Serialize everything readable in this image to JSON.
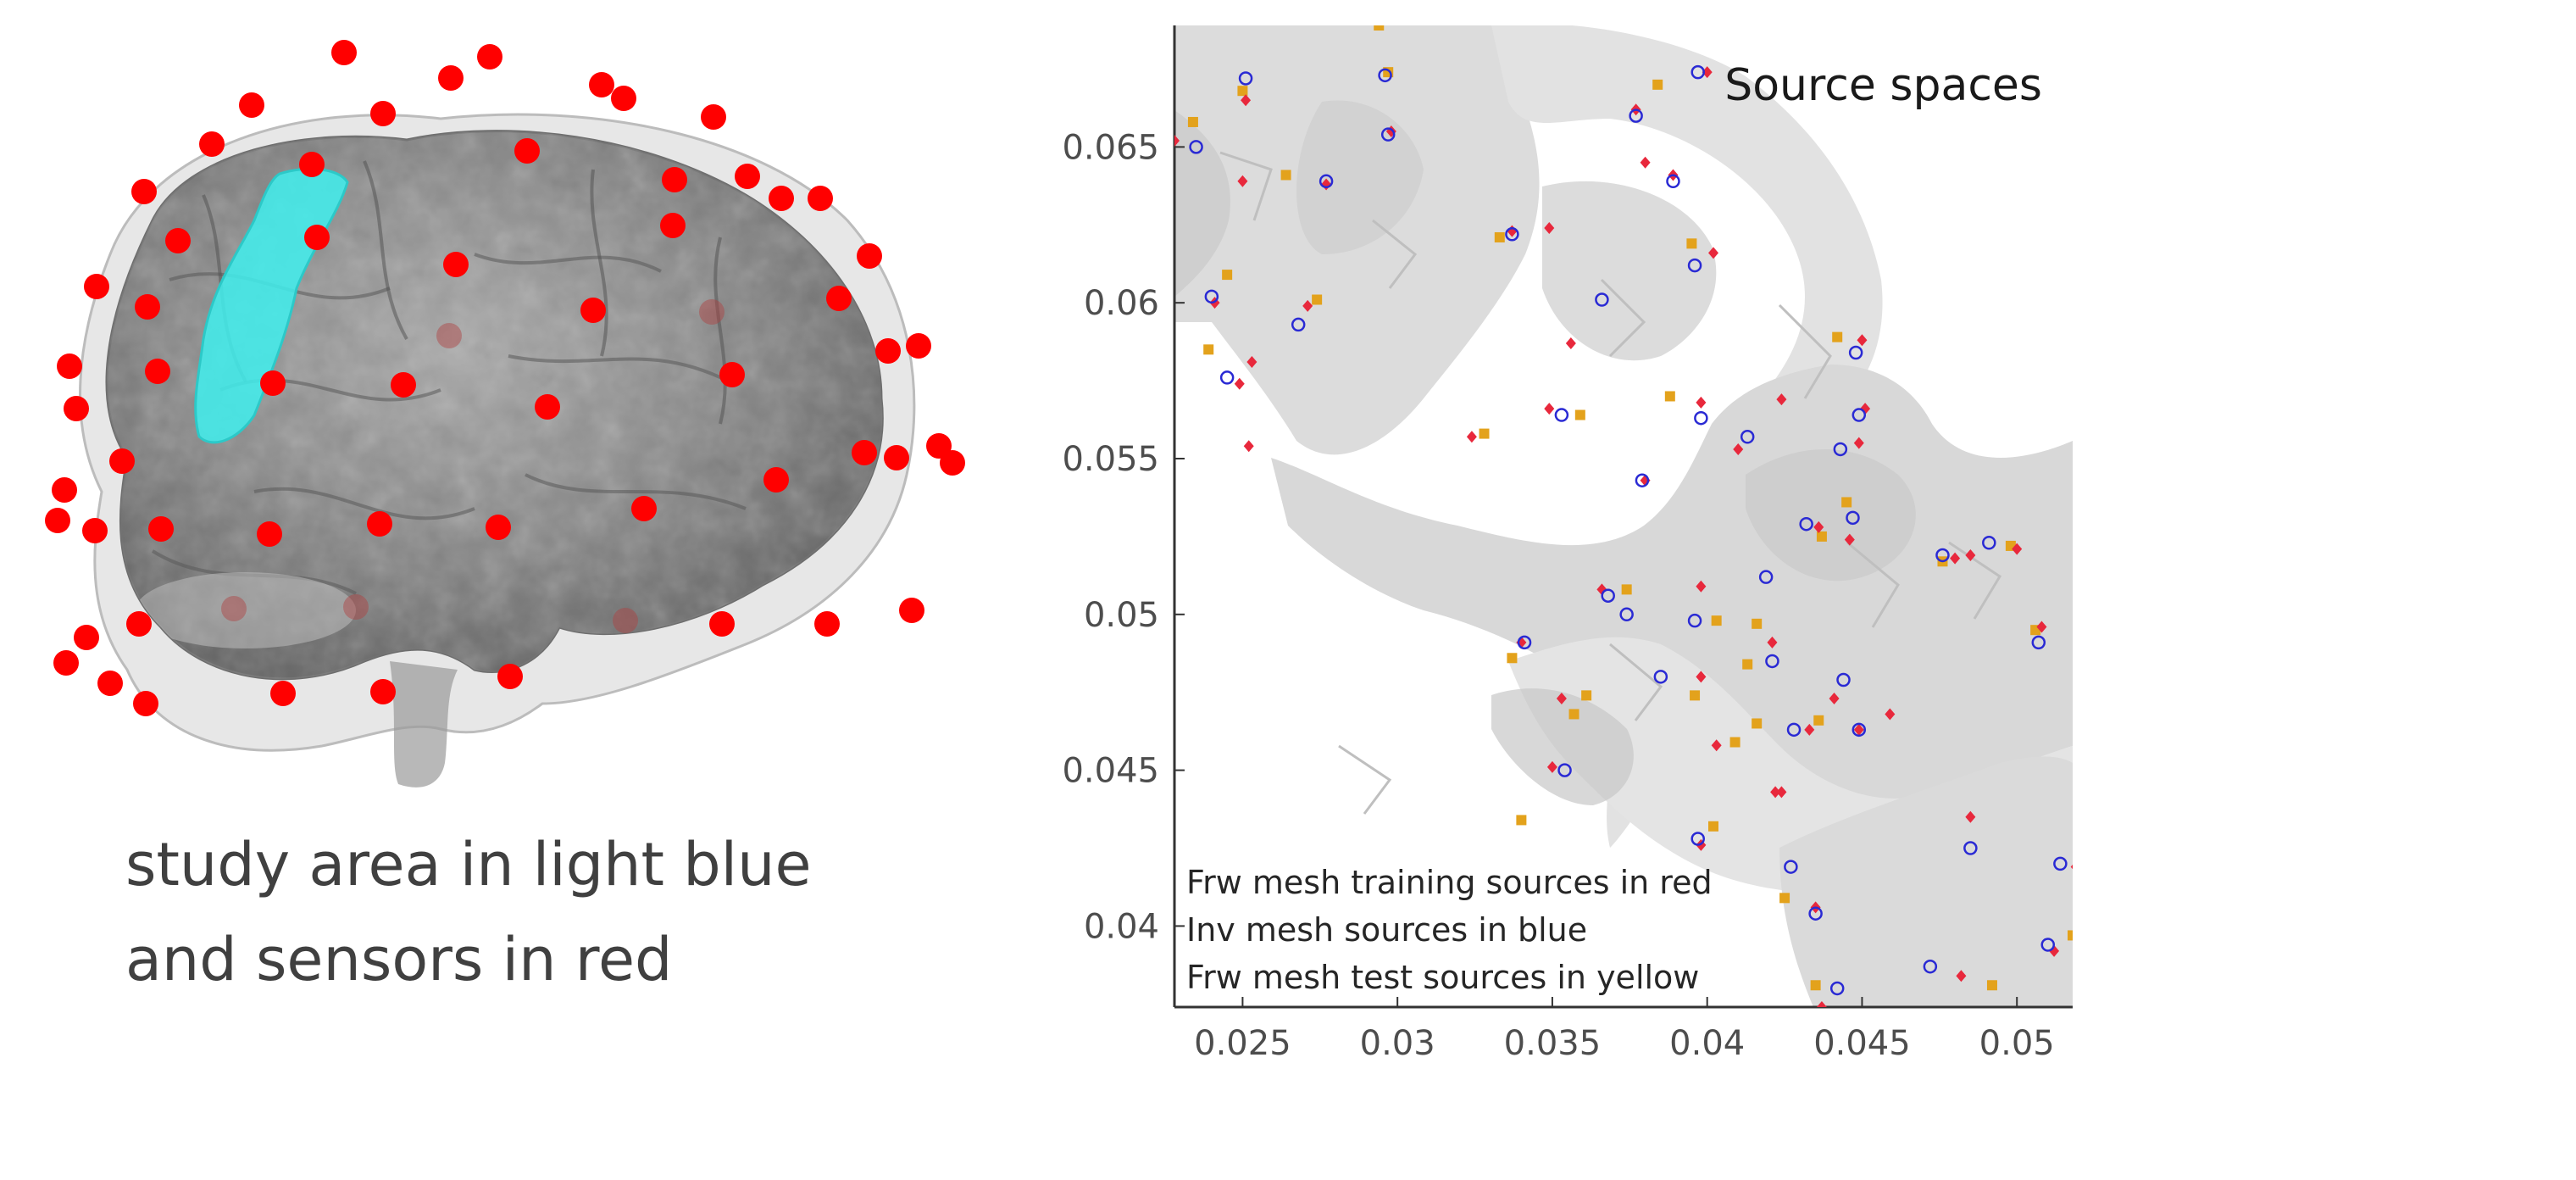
{
  "brain_figure": {
    "caption_lines": [
      "study area in light blue",
      "and sensors in red"
    ],
    "colors": {
      "study_area": "#3ff0ee",
      "sensors": "#ff0000",
      "brain": "#8a8a8a",
      "head": "#cfcfcf"
    }
  },
  "chart_data": {
    "type": "scatter",
    "title": "Source spaces",
    "xlabel": "",
    "ylabel": "",
    "xlim": [
      0.0228,
      0.0518
    ],
    "ylim": [
      0.0374,
      0.0689
    ],
    "xticks": [
      0.025,
      0.03,
      0.035,
      0.04,
      0.045,
      0.05
    ],
    "xtick_labels": [
      "0.025",
      "0.03",
      "0.035",
      "0.04",
      "0.045",
      "0.05"
    ],
    "yticks": [
      0.04,
      0.045,
      0.05,
      0.055,
      0.06,
      0.065
    ],
    "ytick_labels": [
      "0.04",
      "0.045",
      "0.05",
      "0.055",
      "0.06",
      "0.065"
    ],
    "grid": false,
    "legend_position": "bottom-left",
    "legend_lines": [
      "Frw mesh training sources in red",
      "Inv mesh sources in blue",
      "Frw mesh test sources in yellow"
    ],
    "background": "gray cortical surface mesh",
    "series": [
      {
        "marker": "diamond",
        "color": "#e8283c",
        "points": [
          [
            0.0228,
            0.0652
          ],
          [
            0.0251,
            0.0665
          ],
          [
            0.0298,
            0.0655
          ],
          [
            0.025,
            0.0639
          ],
          [
            0.0277,
            0.0638
          ],
          [
            0.0377,
            0.0662
          ],
          [
            0.04,
            0.0674
          ],
          [
            0.038,
            0.0645
          ],
          [
            0.0389,
            0.0641
          ],
          [
            0.0337,
            0.0623
          ],
          [
            0.0349,
            0.0624
          ],
          [
            0.0241,
            0.06
          ],
          [
            0.0253,
            0.0581
          ],
          [
            0.0271,
            0.0599
          ],
          [
            0.0402,
            0.0616
          ],
          [
            0.045,
            0.0588
          ],
          [
            0.0451,
            0.0566
          ],
          [
            0.0424,
            0.0569
          ],
          [
            0.0398,
            0.0568
          ],
          [
            0.0349,
            0.0566
          ],
          [
            0.0324,
            0.0557
          ],
          [
            0.041,
            0.0553
          ],
          [
            0.0449,
            0.0555
          ],
          [
            0.0249,
            0.0574
          ],
          [
            0.0252,
            0.0554
          ],
          [
            0.038,
            0.0543
          ],
          [
            0.0436,
            0.0528
          ],
          [
            0.0446,
            0.0524
          ],
          [
            0.048,
            0.0518
          ],
          [
            0.0485,
            0.0519
          ],
          [
            0.05,
            0.0521
          ],
          [
            0.0366,
            0.0508
          ],
          [
            0.0398,
            0.0509
          ],
          [
            0.0421,
            0.0491
          ],
          [
            0.0398,
            0.048
          ],
          [
            0.0441,
            0.0473
          ],
          [
            0.0459,
            0.0468
          ],
          [
            0.0449,
            0.0463
          ],
          [
            0.0433,
            0.0463
          ],
          [
            0.0403,
            0.0458
          ],
          [
            0.0353,
            0.0473
          ],
          [
            0.034,
            0.0491
          ],
          [
            0.035,
            0.0451
          ],
          [
            0.0485,
            0.0435
          ],
          [
            0.0424,
            0.0443
          ],
          [
            0.0422,
            0.0443
          ],
          [
            0.0398,
            0.0426
          ],
          [
            0.0435,
            0.0406
          ],
          [
            0.0437,
            0.0374
          ],
          [
            0.0482,
            0.0384
          ],
          [
            0.0512,
            0.0392
          ],
          [
            0.0519,
            0.0419
          ],
          [
            0.0508,
            0.0496
          ],
          [
            0.0356,
            0.0587
          ]
        ]
      },
      {
        "marker": "circle",
        "color": "#2a2ad4",
        "points": [
          [
            0.0235,
            0.065
          ],
          [
            0.0251,
            0.0672
          ],
          [
            0.0277,
            0.0639
          ],
          [
            0.0297,
            0.0654
          ],
          [
            0.0296,
            0.0673
          ],
          [
            0.0389,
            0.0639
          ],
          [
            0.0377,
            0.066
          ],
          [
            0.0397,
            0.0674
          ],
          [
            0.0337,
            0.0622
          ],
          [
            0.0396,
            0.0612
          ],
          [
            0.024,
            0.0602
          ],
          [
            0.0268,
            0.0593
          ],
          [
            0.0366,
            0.0601
          ],
          [
            0.0245,
            0.0576
          ],
          [
            0.0353,
            0.0564
          ],
          [
            0.0398,
            0.0563
          ],
          [
            0.0413,
            0.0557
          ],
          [
            0.0448,
            0.0584
          ],
          [
            0.0449,
            0.0564
          ],
          [
            0.0443,
            0.0553
          ],
          [
            0.0379,
            0.0543
          ],
          [
            0.0432,
            0.0529
          ],
          [
            0.0447,
            0.0531
          ],
          [
            0.0476,
            0.0519
          ],
          [
            0.0491,
            0.0523
          ],
          [
            0.0419,
            0.0512
          ],
          [
            0.0368,
            0.0506
          ],
          [
            0.0374,
            0.05
          ],
          [
            0.0396,
            0.0498
          ],
          [
            0.0341,
            0.0491
          ],
          [
            0.0421,
            0.0485
          ],
          [
            0.0385,
            0.048
          ],
          [
            0.0444,
            0.0479
          ],
          [
            0.0449,
            0.0463
          ],
          [
            0.0428,
            0.0463
          ],
          [
            0.0354,
            0.045
          ],
          [
            0.0397,
            0.0428
          ],
          [
            0.0427,
            0.0419
          ],
          [
            0.0435,
            0.0404
          ],
          [
            0.0442,
            0.038
          ],
          [
            0.0472,
            0.0387
          ],
          [
            0.0485,
            0.0425
          ],
          [
            0.0507,
            0.0491
          ],
          [
            0.051,
            0.0394
          ],
          [
            0.0514,
            0.042
          ]
        ]
      },
      {
        "marker": "square",
        "color": "#e3a21c",
        "points": [
          [
            0.0234,
            0.0658
          ],
          [
            0.025,
            0.0668
          ],
          [
            0.0294,
            0.0689
          ],
          [
            0.0297,
            0.0674
          ],
          [
            0.0264,
            0.0641
          ],
          [
            0.0384,
            0.067
          ],
          [
            0.0395,
            0.0619
          ],
          [
            0.0333,
            0.0621
          ],
          [
            0.0245,
            0.0609
          ],
          [
            0.0239,
            0.0585
          ],
          [
            0.0274,
            0.0601
          ],
          [
            0.0388,
            0.057
          ],
          [
            0.0442,
            0.0589
          ],
          [
            0.0359,
            0.0564
          ],
          [
            0.0328,
            0.0558
          ],
          [
            0.0403,
            0.0498
          ],
          [
            0.0445,
            0.0536
          ],
          [
            0.0437,
            0.0525
          ],
          [
            0.0396,
            0.0474
          ],
          [
            0.0374,
            0.0508
          ],
          [
            0.0498,
            0.0522
          ],
          [
            0.0476,
            0.0517
          ],
          [
            0.0436,
            0.0466
          ],
          [
            0.0416,
            0.0497
          ],
          [
            0.0413,
            0.0484
          ],
          [
            0.0409,
            0.0459
          ],
          [
            0.0416,
            0.0465
          ],
          [
            0.0357,
            0.0468
          ],
          [
            0.0337,
            0.0486
          ],
          [
            0.034,
            0.0434
          ],
          [
            0.0402,
            0.0432
          ],
          [
            0.0425,
            0.0409
          ],
          [
            0.0435,
            0.0381
          ],
          [
            0.0492,
            0.0381
          ],
          [
            0.0518,
            0.0397
          ],
          [
            0.0506,
            0.0495
          ],
          [
            0.0361,
            0.0474
          ]
        ]
      }
    ]
  }
}
